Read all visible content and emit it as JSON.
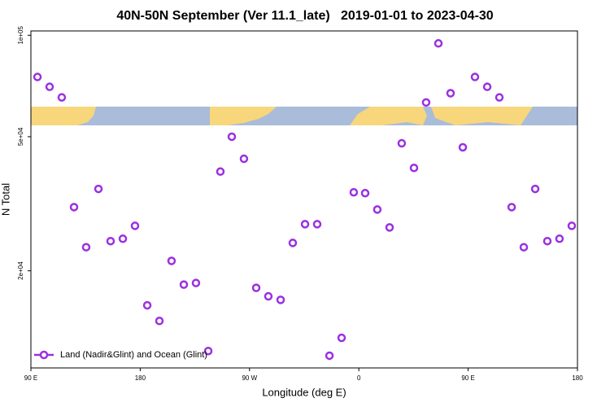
{
  "chart_data": {
    "type": "scatter",
    "title": "40N-50N September (Ver 11.1_late)   2019-01-01 to 2023-04-30",
    "x_label": "Longitude (deg E)",
    "y_label": "N Total",
    "x": [
      95.4,
      105.4,
      115.4,
      125.5,
      135.5,
      145.6,
      155.6,
      165.7,
      175.7,
      185.8,
      195.8,
      205.8,
      215.9,
      225.9,
      236.0,
      246.0,
      255.4,
      265.4,
      275.5,
      285.5,
      295.6,
      305.6,
      315.7,
      325.7,
      335.8,
      345.8,
      355.8,
      365.2,
      375.2,
      385.3,
      395.3,
      405.4,
      415.4,
      425.5,
      435.5,
      445.6,
      455.6,
      465.7,
      475.7,
      485.8,
      495.8,
      505.2,
      515.2,
      525.2,
      535.3
    ],
    "series": [
      {
        "name": "Land (Nadir&Glint) and Ocean (Glint)",
        "color": "#9b30e0",
        "values": [
          75200,
          70300,
          65400,
          30900,
          23500,
          35000,
          24500,
          24900,
          27200,
          15800,
          14200,
          21400,
          18200,
          18400,
          11560,
          39400,
          50000,
          43000,
          17800,
          16800,
          16400,
          24200,
          27500,
          27500,
          11200,
          12650,
          34200,
          34000,
          30400,
          26900,
          47800,
          40400,
          63200,
          94600,
          67300,
          46500,
          75200,
          70300,
          65400,
          30900,
          23500,
          35000,
          24500,
          24900,
          27200
        ]
      }
    ],
    "xlim": [
      90,
      540
    ],
    "xticks": [
      {
        "value": 90,
        "label": "90 E"
      },
      180,
      {
        "value": 270,
        "label": "90 W"
      },
      {
        "value": 360,
        "label": "0"
      },
      {
        "value": 450,
        "label": "90 E"
      },
      {
        "value": 540,
        "label": "180"
      }
    ],
    "ylim": [
      10300,
      103000
    ],
    "ylog": true,
    "yticks": [
      {
        "value": 100000,
        "label": "1e+05"
      },
      {
        "value": 50000,
        "label": "5e+04"
      },
      {
        "value": 20000,
        "label": "2e+04"
      }
    ],
    "legend": "bottom-left"
  }
}
